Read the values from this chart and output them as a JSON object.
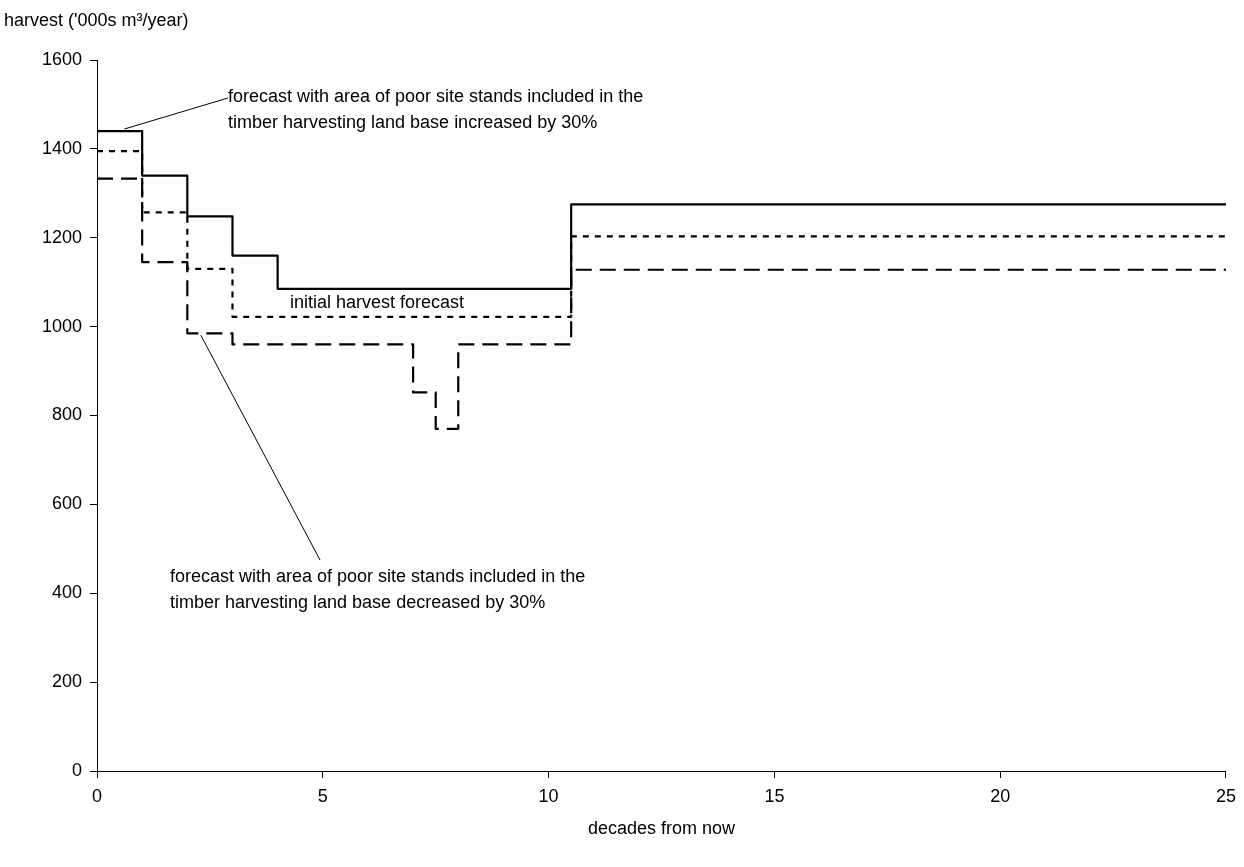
{
  "chart_data": {
    "type": "step",
    "xlabel": "decades from now",
    "ylabel": "harvest ('000s m³/year)",
    "xlim": [
      0,
      25
    ],
    "xticks": [
      0,
      5,
      10,
      15,
      20,
      25
    ],
    "ylim": [
      0,
      1600
    ],
    "yticks": [
      0,
      200,
      400,
      600,
      800,
      1000,
      1200,
      1400,
      1600
    ],
    "grid": false,
    "legend": false,
    "series": [
      {
        "name": "forecast with area of poor site stands included in the timber harvesting land base increased by 30%",
        "color": "#000000",
        "line_style": "solid",
        "x": [
          0,
          1,
          2,
          3,
          4,
          10.5,
          25
        ],
        "values": [
          1440,
          1340,
          1248,
          1160,
          1085,
          1275,
          1275
        ]
      },
      {
        "name": "initial harvest forecast",
        "color": "#000000",
        "line_style": "dotted",
        "x": [
          0,
          1,
          2,
          3,
          10.5,
          25
        ],
        "values": [
          1395,
          1257,
          1130,
          1022,
          1203,
          1203
        ]
      },
      {
        "name": "forecast with area of poor site stands included in the timber harvesting land base decreased by 30%",
        "color": "#000000",
        "line_style": "dashed",
        "x": [
          0,
          1,
          2,
          3,
          7,
          7.5,
          8,
          10.5,
          25
        ],
        "values": [
          1333,
          1145,
          985,
          960,
          852,
          770,
          960,
          1128,
          1128
        ]
      }
    ]
  }
}
